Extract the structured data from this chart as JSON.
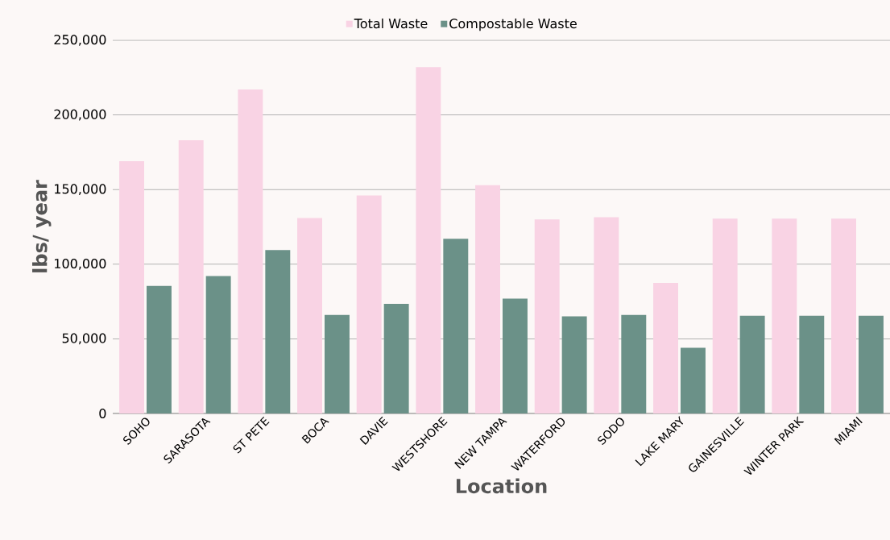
{
  "chart_data": {
    "type": "bar",
    "xlabel": "Location",
    "ylabel": "lbs/ year",
    "categories": [
      "SOHO",
      "SARASOTA",
      "ST PETE",
      "BOCA",
      "DAVIE",
      "WESTSHORE",
      "NEW TAMPA",
      "WATERFORD",
      "SODO",
      "LAKE MARY",
      "GAINESVILLE",
      "WINTER PARK",
      "MIAMI"
    ],
    "series": [
      {
        "name": "Total Waste",
        "color": "#f9d3e4",
        "values": [
          169000,
          183000,
          217000,
          131000,
          146000,
          232000,
          153000,
          130000,
          131500,
          87500,
          130500,
          130500,
          130500
        ]
      },
      {
        "name": "Compostable Waste",
        "color": "#6b9188",
        "values": [
          85500,
          92000,
          109500,
          66000,
          73500,
          117000,
          77000,
          65000,
          66000,
          44000,
          65500,
          65500,
          65500
        ]
      }
    ],
    "ylim": [
      0,
      250000
    ],
    "yticks": [
      {
        "value": 0,
        "label": "0"
      },
      {
        "value": 50000,
        "label": "50,000"
      },
      {
        "value": 100000,
        "label": "100,000"
      },
      {
        "value": 150000,
        "label": "150,000"
      },
      {
        "value": 200000,
        "label": "200,000"
      },
      {
        "value": 250000,
        "label": "250,000"
      }
    ],
    "grid": "y",
    "legend": "top"
  }
}
